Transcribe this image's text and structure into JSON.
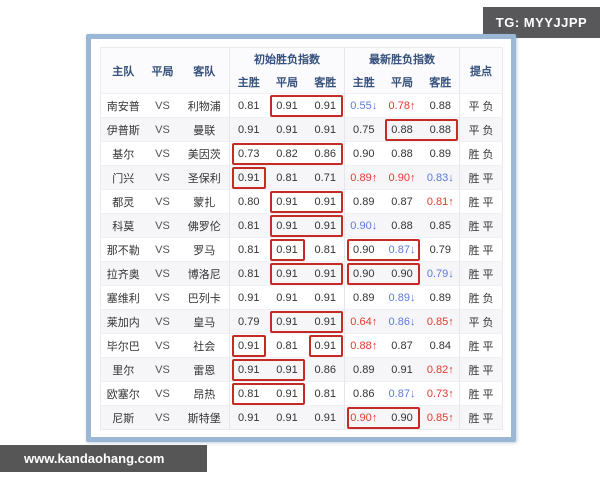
{
  "badges": {
    "tg_label": "TG: MYYJJPP",
    "watermark_label": "www.kandaohang.com"
  },
  "colors": {
    "up_red": "#e23a2e",
    "down_blue": "#5b79dd",
    "highlight_box_red": "#c42b24",
    "panel_border_blue": "#9ab8d6",
    "badge_gray": "#58585a"
  },
  "table": {
    "col_headers": {
      "home": "主队",
      "draw": "平局",
      "away": "客队",
      "initial_group": "初始胜负指数",
      "latest_group": "最新胜负指数",
      "win": "主胜",
      "draw_sub": "平局",
      "lose": "客胜",
      "tips": "提点"
    },
    "vs_label": "VS",
    "rows": [
      {
        "home": "南安普",
        "away": "利物浦",
        "initial": [
          {
            "v": "0.81"
          },
          {
            "v": "0.91"
          },
          {
            "v": "0.91"
          }
        ],
        "latest": [
          {
            "v": "0.55",
            "dir": "down"
          },
          {
            "v": "0.78",
            "dir": "up"
          },
          {
            "v": "0.88"
          }
        ],
        "tips": "平 负",
        "boxes": [
          [
            1,
            2
          ]
        ]
      },
      {
        "home": "伊普斯",
        "away": "曼联",
        "initial": [
          {
            "v": "0.91"
          },
          {
            "v": "0.91"
          },
          {
            "v": "0.91"
          }
        ],
        "latest": [
          {
            "v": "0.75"
          },
          {
            "v": "0.88"
          },
          {
            "v": "0.88"
          }
        ],
        "tips": "平 负",
        "boxes": [
          [
            4,
            5
          ]
        ]
      },
      {
        "home": "基尔",
        "away": "美因茨",
        "initial": [
          {
            "v": "0.73"
          },
          {
            "v": "0.82"
          },
          {
            "v": "0.86"
          }
        ],
        "latest": [
          {
            "v": "0.90"
          },
          {
            "v": "0.88"
          },
          {
            "v": "0.89"
          }
        ],
        "tips": "胜 负",
        "boxes": [
          [
            0,
            2
          ]
        ]
      },
      {
        "home": "门兴",
        "away": "圣保利",
        "initial": [
          {
            "v": "0.91"
          },
          {
            "v": "0.81"
          },
          {
            "v": "0.71"
          }
        ],
        "latest": [
          {
            "v": "0.89",
            "dir": "up"
          },
          {
            "v": "0.90",
            "dir": "up"
          },
          {
            "v": "0.83",
            "dir": "down"
          }
        ],
        "tips": "胜 平",
        "boxes": [
          [
            0,
            0
          ]
        ]
      },
      {
        "home": "都灵",
        "away": "蒙扎",
        "initial": [
          {
            "v": "0.80"
          },
          {
            "v": "0.91"
          },
          {
            "v": "0.91"
          }
        ],
        "latest": [
          {
            "v": "0.89"
          },
          {
            "v": "0.87"
          },
          {
            "v": "0.81",
            "dir": "up"
          }
        ],
        "tips": "胜 平",
        "boxes": [
          [
            1,
            2
          ]
        ]
      },
      {
        "home": "科莫",
        "away": "佛罗伦",
        "initial": [
          {
            "v": "0.81"
          },
          {
            "v": "0.91"
          },
          {
            "v": "0.91"
          }
        ],
        "latest": [
          {
            "v": "0.90",
            "dir": "down"
          },
          {
            "v": "0.88"
          },
          {
            "v": "0.85"
          }
        ],
        "tips": "胜 平",
        "boxes": [
          [
            1,
            2
          ]
        ]
      },
      {
        "home": "那不勒",
        "away": "罗马",
        "initial": [
          {
            "v": "0.81"
          },
          {
            "v": "0.91"
          },
          {
            "v": "0.81"
          }
        ],
        "latest": [
          {
            "v": "0.90"
          },
          {
            "v": "0.87",
            "dir": "down"
          },
          {
            "v": "0.79"
          }
        ],
        "tips": "胜 平",
        "boxes": [
          [
            1,
            1
          ],
          [
            3,
            4
          ]
        ]
      },
      {
        "home": "拉齐奥",
        "away": "博洛尼",
        "initial": [
          {
            "v": "0.81"
          },
          {
            "v": "0.91"
          },
          {
            "v": "0.91"
          }
        ],
        "latest": [
          {
            "v": "0.90"
          },
          {
            "v": "0.90"
          },
          {
            "v": "0.79",
            "dir": "down"
          }
        ],
        "tips": "胜 平",
        "boxes": [
          [
            1,
            2
          ],
          [
            3,
            4
          ]
        ]
      },
      {
        "home": "塞维利",
        "away": "巴列卡",
        "initial": [
          {
            "v": "0.91"
          },
          {
            "v": "0.91"
          },
          {
            "v": "0.91"
          }
        ],
        "latest": [
          {
            "v": "0.89"
          },
          {
            "v": "0.89",
            "dir": "down"
          },
          {
            "v": "0.89"
          }
        ],
        "tips": "胜 负",
        "boxes": []
      },
      {
        "home": "莱加内",
        "away": "皇马",
        "initial": [
          {
            "v": "0.79"
          },
          {
            "v": "0.91"
          },
          {
            "v": "0.91"
          }
        ],
        "latest": [
          {
            "v": "0.64",
            "dir": "up"
          },
          {
            "v": "0.86",
            "dir": "down"
          },
          {
            "v": "0.85",
            "dir": "up"
          }
        ],
        "tips": "平 负",
        "boxes": [
          [
            1,
            2
          ]
        ]
      },
      {
        "home": "毕尔巴",
        "away": "社会",
        "initial": [
          {
            "v": "0.91"
          },
          {
            "v": "0.81"
          },
          {
            "v": "0.91"
          }
        ],
        "latest": [
          {
            "v": "0.88",
            "dir": "up"
          },
          {
            "v": "0.87"
          },
          {
            "v": "0.84"
          }
        ],
        "tips": "胜 平",
        "boxes": [
          [
            0,
            0
          ],
          [
            2,
            2
          ]
        ]
      },
      {
        "home": "里尔",
        "away": "雷恩",
        "initial": [
          {
            "v": "0.91"
          },
          {
            "v": "0.91"
          },
          {
            "v": "0.86"
          }
        ],
        "latest": [
          {
            "v": "0.89"
          },
          {
            "v": "0.91"
          },
          {
            "v": "0.82",
            "dir": "up"
          }
        ],
        "tips": "胜 平",
        "boxes": [
          [
            0,
            1
          ]
        ]
      },
      {
        "home": "欧塞尔",
        "away": "昂热",
        "initial": [
          {
            "v": "0.81"
          },
          {
            "v": "0.91"
          },
          {
            "v": "0.81"
          }
        ],
        "latest": [
          {
            "v": "0.86"
          },
          {
            "v": "0.87",
            "dir": "down"
          },
          {
            "v": "0.73",
            "dir": "up"
          }
        ],
        "tips": "胜 平",
        "boxes": [
          [
            0,
            1
          ]
        ]
      },
      {
        "home": "尼斯",
        "away": "斯特堡",
        "initial": [
          {
            "v": "0.91"
          },
          {
            "v": "0.91"
          },
          {
            "v": "0.91"
          }
        ],
        "latest": [
          {
            "v": "0.90",
            "dir": "up"
          },
          {
            "v": "0.90"
          },
          {
            "v": "0.85",
            "dir": "up"
          }
        ],
        "tips": "胜 平",
        "boxes": [
          [
            3,
            4
          ]
        ]
      }
    ]
  }
}
